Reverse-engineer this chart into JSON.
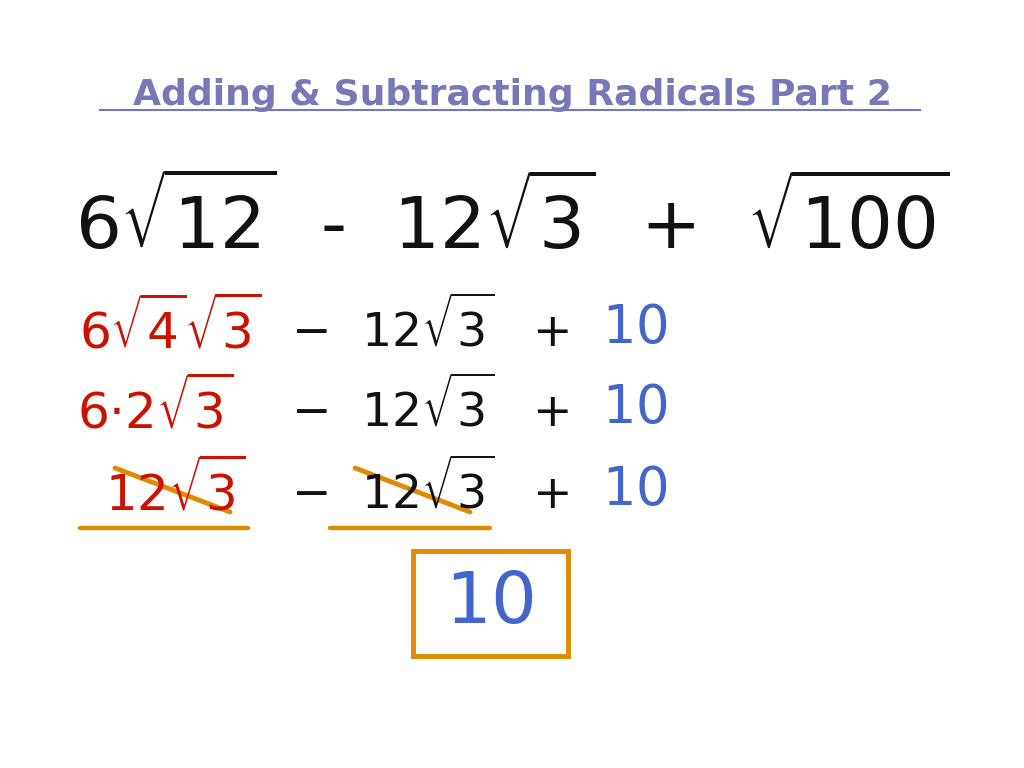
{
  "title": "Adding & Subtracting Radicals Part 2",
  "title_color": "#7878b8",
  "bg_color": "#ffffff",
  "red_color": "#cc1100",
  "black_color": "#111111",
  "blue_color": "#4466cc",
  "orange_color": "#e08a00",
  "fig_width": 10.24,
  "fig_height": 7.68,
  "dpi": 100
}
